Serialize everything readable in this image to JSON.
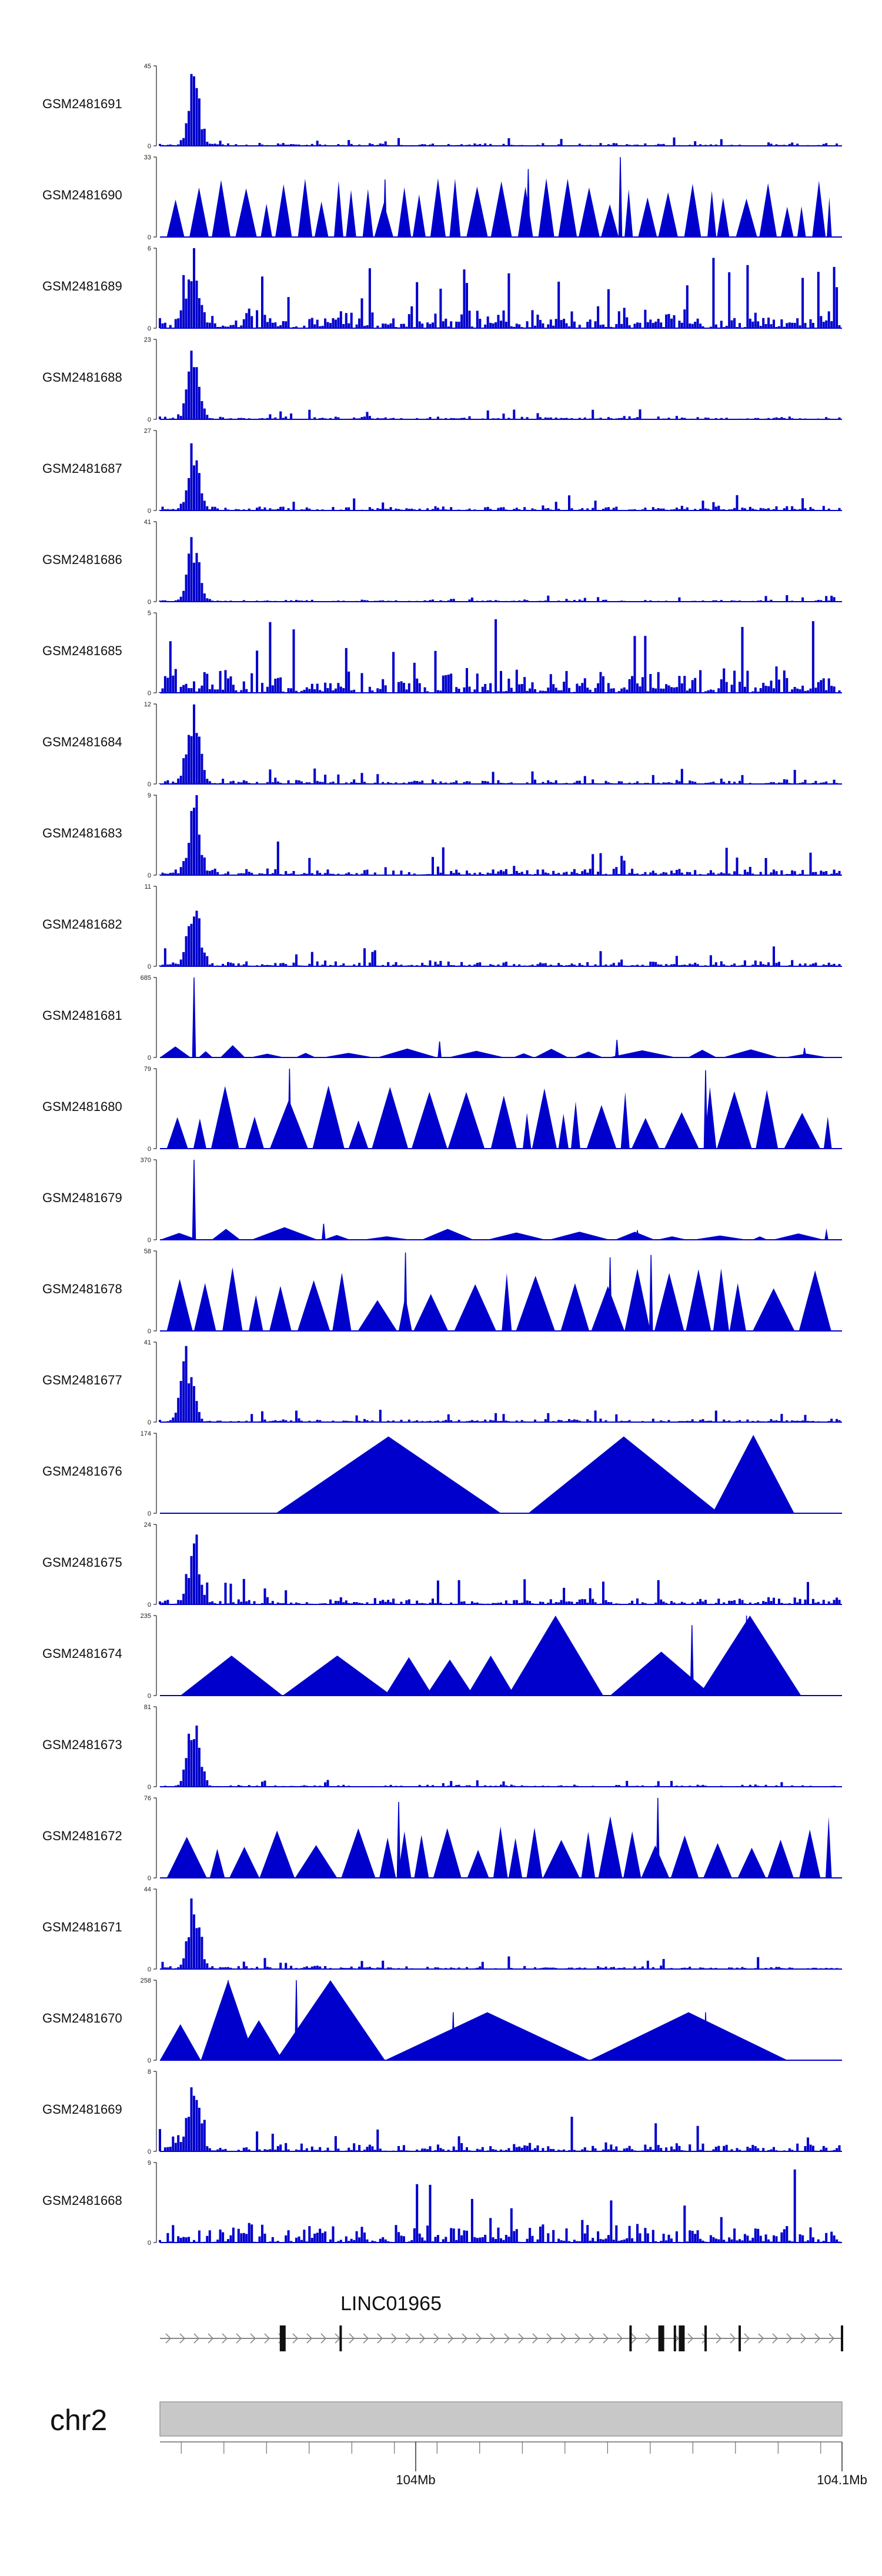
{
  "chart_data": {
    "type": "area",
    "title": "",
    "colors": {
      "signal": "#0000CC",
      "axis": "#222222",
      "ideogram": "#C8C8C8",
      "gene": "#111111",
      "intron": "#888888"
    },
    "xlim": [
      103.94,
      104.1
    ],
    "x_axis": {
      "unit": "Mb",
      "labeled_ticks": [
        {
          "value": 104.0,
          "label": "104Mb"
        },
        {
          "value": 104.1,
          "label": "104.1Mb"
        }
      ]
    },
    "tracks": [
      {
        "name": "GSM2481691",
        "ymax": "45",
        "max": 45,
        "style": "dense",
        "peak": 0.05,
        "base": 0.04,
        "spike": 0.06
      },
      {
        "name": "GSM2481690",
        "ymax": "33",
        "max": 33,
        "style": "tri",
        "peaks": [
          [
            0.33,
            0.72
          ],
          [
            0.54,
            0.85
          ],
          [
            0.675,
            1.0
          ]
        ]
      },
      {
        "name": "GSM2481689",
        "ymax": "6",
        "max": 6,
        "style": "dense",
        "peak": 0.05,
        "base": 0.3,
        "spike": 0.5
      },
      {
        "name": "GSM2481688",
        "ymax": "23",
        "max": 23,
        "style": "dense",
        "peak": 0.05,
        "base": 0.05,
        "spike": 0.08
      },
      {
        "name": "GSM2481687",
        "ymax": "27",
        "max": 27,
        "style": "dense",
        "peak": 0.05,
        "base": 0.07,
        "spike": 0.12
      },
      {
        "name": "GSM2481686",
        "ymax": "41",
        "max": 41,
        "style": "dense",
        "peak": 0.05,
        "base": 0.03,
        "spike": 0.05
      },
      {
        "name": "GSM2481685",
        "ymax": "5",
        "max": 5,
        "style": "dense",
        "peak": 0.0,
        "base": 0.35,
        "spike": 0.55
      },
      {
        "name": "GSM2481684",
        "ymax": "12",
        "max": 12,
        "style": "dense",
        "peak": 0.05,
        "base": 0.07,
        "spike": 0.12
      },
      {
        "name": "GSM2481683",
        "ymax": "9",
        "max": 9,
        "style": "dense",
        "peak": 0.05,
        "base": 0.12,
        "spike": 0.25
      },
      {
        "name": "GSM2481682",
        "ymax": "11",
        "max": 11,
        "style": "dense",
        "peak": 0.05,
        "base": 0.08,
        "spike": 0.15
      },
      {
        "name": "GSM2481681",
        "ymax": "685",
        "max": 685,
        "style": "tri",
        "peaks": [
          [
            0.05,
            1.0
          ],
          [
            0.41,
            0.2
          ],
          [
            0.67,
            0.22
          ],
          [
            0.945,
            0.12
          ]
        ]
      },
      {
        "name": "GSM2481680",
        "ymax": "79",
        "max": 79,
        "style": "tri",
        "peaks": [
          [
            0.19,
            1.0
          ],
          [
            0.8,
            0.98
          ]
        ]
      },
      {
        "name": "GSM2481679",
        "ymax": "370",
        "max": 370,
        "style": "tri",
        "peaks": [
          [
            0.05,
            1.0
          ],
          [
            0.24,
            0.2
          ],
          [
            0.7,
            0.12
          ]
        ]
      },
      {
        "name": "GSM2481678",
        "ymax": "58",
        "max": 58,
        "style": "tri",
        "peaks": [
          [
            0.36,
            0.98
          ],
          [
            0.66,
            0.92
          ],
          [
            0.72,
            0.95
          ]
        ]
      },
      {
        "name": "GSM2481677",
        "ymax": "41",
        "max": 41,
        "style": "dense",
        "peak": 0.04,
        "base": 0.05,
        "spike": 0.1
      },
      {
        "name": "GSM2481676",
        "ymax": "174",
        "max": 174,
        "style": "tri",
        "peaks": []
      },
      {
        "name": "GSM2481675",
        "ymax": "24",
        "max": 24,
        "style": "dense",
        "peak": 0.05,
        "base": 0.1,
        "spike": 0.2
      },
      {
        "name": "GSM2481674",
        "ymax": "235",
        "max": 235,
        "style": "tri",
        "peaks": [
          [
            0.78,
            0.88
          ],
          [
            0.86,
            1.0
          ]
        ]
      },
      {
        "name": "GSM2481673",
        "ymax": "81",
        "max": 81,
        "style": "dense",
        "peak": 0.05,
        "base": 0.03,
        "spike": 0.05
      },
      {
        "name": "GSM2481672",
        "ymax": "76",
        "max": 76,
        "style": "tri",
        "peaks": [
          [
            0.35,
            0.95
          ],
          [
            0.73,
            1.0
          ]
        ]
      },
      {
        "name": "GSM2481671",
        "ymax": "44",
        "max": 44,
        "style": "dense",
        "peak": 0.05,
        "base": 0.05,
        "spike": 0.1
      },
      {
        "name": "GSM2481670",
        "ymax": "258",
        "max": 258,
        "style": "tri",
        "peaks": [
          [
            0.1,
            1.0
          ],
          [
            0.2,
            1.0
          ],
          [
            0.43,
            0.6
          ],
          [
            0.8,
            0.6
          ]
        ]
      },
      {
        "name": "GSM2481669",
        "ymax": "8",
        "max": 8,
        "style": "dense",
        "peak": 0.05,
        "base": 0.12,
        "spike": 0.25
      },
      {
        "name": "GSM2481668",
        "ymax": "9",
        "max": 9,
        "style": "dense",
        "peak": 0.0,
        "base": 0.3,
        "spike": 0.55
      }
    ],
    "gene": {
      "name": "LINC01965",
      "strand": "+",
      "exons": [
        0.18,
        0.265,
        0.69,
        0.735,
        0.755,
        0.765,
        0.8,
        0.85,
        1.0
      ]
    },
    "ideogram": {
      "chromosome": "chr2"
    }
  }
}
